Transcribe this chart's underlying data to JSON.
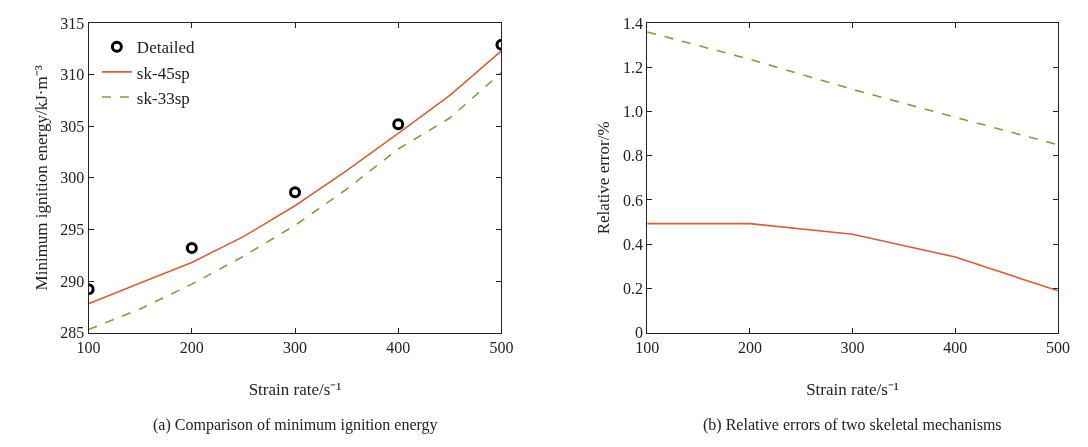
{
  "chart_data": [
    {
      "type": "line",
      "xlabel": "Strain rate/s⁻¹",
      "ylabel": "Minimum ignition energy/kJ·m⁻³",
      "annotations": [
        "(a) Comparison of minimum ignition energy"
      ],
      "xlim": [
        100,
        500
      ],
      "xticks": [
        100,
        200,
        300,
        400,
        500
      ],
      "ylim": [
        285,
        315
      ],
      "yticks": [
        285,
        290,
        295,
        300,
        305,
        310,
        315
      ],
      "legend": "top left",
      "series": [
        {
          "name": "Detailed",
          "type": "scatter",
          "marker": "circle",
          "color": "#000000",
          "x": [
            100,
            200,
            300,
            400,
            500
          ],
          "values": [
            289.2,
            293.2,
            298.6,
            305.2,
            312.9
          ]
        },
        {
          "name": "sk-45sp",
          "line_style": "solid",
          "color": "#d95f36",
          "x": [
            100,
            150,
            200,
            250,
            265,
            300,
            350,
            400,
            450,
            500
          ],
          "values": [
            287.8,
            289.8,
            291.8,
            294.3,
            295.2,
            297.3,
            300.7,
            304.3,
            308.0,
            312.3
          ]
        },
        {
          "name": "sk-33sp",
          "line_style": "dashed",
          "color": "#7ea13a",
          "x": [
            100,
            150,
            200,
            250,
            300,
            350,
            400,
            450,
            500
          ],
          "values": [
            285.3,
            287.3,
            289.7,
            292.4,
            295.4,
            298.9,
            302.8,
            305.8,
            310.2
          ]
        }
      ]
    },
    {
      "type": "line",
      "xlabel": "Strain rate/s⁻¹",
      "ylabel": "Relative error/%",
      "annotations": [
        "(b) Relative errors of two skeletal mechanisms"
      ],
      "xlim": [
        100,
        500
      ],
      "xticks": [
        100,
        200,
        300,
        400,
        500
      ],
      "ylim": [
        0,
        1.4
      ],
      "yticks": [
        0,
        0.2,
        0.4,
        0.6,
        0.8,
        {
          "value": 1.0,
          "label": "1.0"
        },
        1.2,
        1.4
      ],
      "legend": false,
      "series": [
        {
          "line_style": "solid",
          "color": "#d95f36",
          "x": [
            100,
            200,
            300,
            400,
            500
          ],
          "values": [
            0.493,
            0.493,
            0.445,
            0.342,
            0.189
          ]
        },
        {
          "line_style": "dashed",
          "color": "#7ea13a",
          "x": [
            100,
            200,
            300,
            400,
            500
          ],
          "values": [
            1.36,
            1.236,
            1.1,
            0.974,
            0.85
          ]
        }
      ]
    }
  ]
}
